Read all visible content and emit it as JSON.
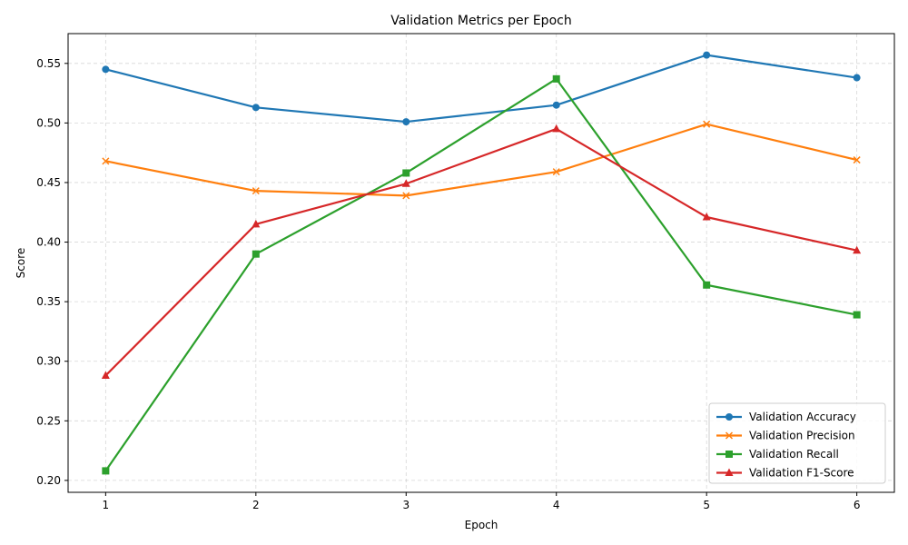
{
  "chart_data": {
    "type": "line",
    "title": "Validation Metrics per Epoch",
    "xlabel": "Epoch",
    "ylabel": "Score",
    "x": [
      1,
      2,
      3,
      4,
      5,
      6
    ],
    "xlim": [
      0.75,
      6.25
    ],
    "ylim": [
      0.19,
      0.575
    ],
    "yticks": [
      0.2,
      0.25,
      0.3,
      0.35,
      0.4,
      0.45,
      0.5,
      0.55
    ],
    "grid": true,
    "legend_position": "lower-right",
    "series": [
      {
        "name": "Validation Accuracy",
        "color": "#1f77b4",
        "marker": "circle",
        "values": [
          0.545,
          0.513,
          0.501,
          0.515,
          0.557,
          0.538
        ]
      },
      {
        "name": "Validation Precision",
        "color": "#ff7f0e",
        "marker": "x",
        "values": [
          0.468,
          0.443,
          0.439,
          0.459,
          0.499,
          0.469
        ]
      },
      {
        "name": "Validation Recall",
        "color": "#2ca02c",
        "marker": "square",
        "values": [
          0.208,
          0.39,
          0.458,
          0.537,
          0.364,
          0.339
        ]
      },
      {
        "name": "Validation F1-Score",
        "color": "#d62728",
        "marker": "triangle",
        "values": [
          0.288,
          0.415,
          0.449,
          0.495,
          0.421,
          0.393
        ]
      }
    ]
  }
}
